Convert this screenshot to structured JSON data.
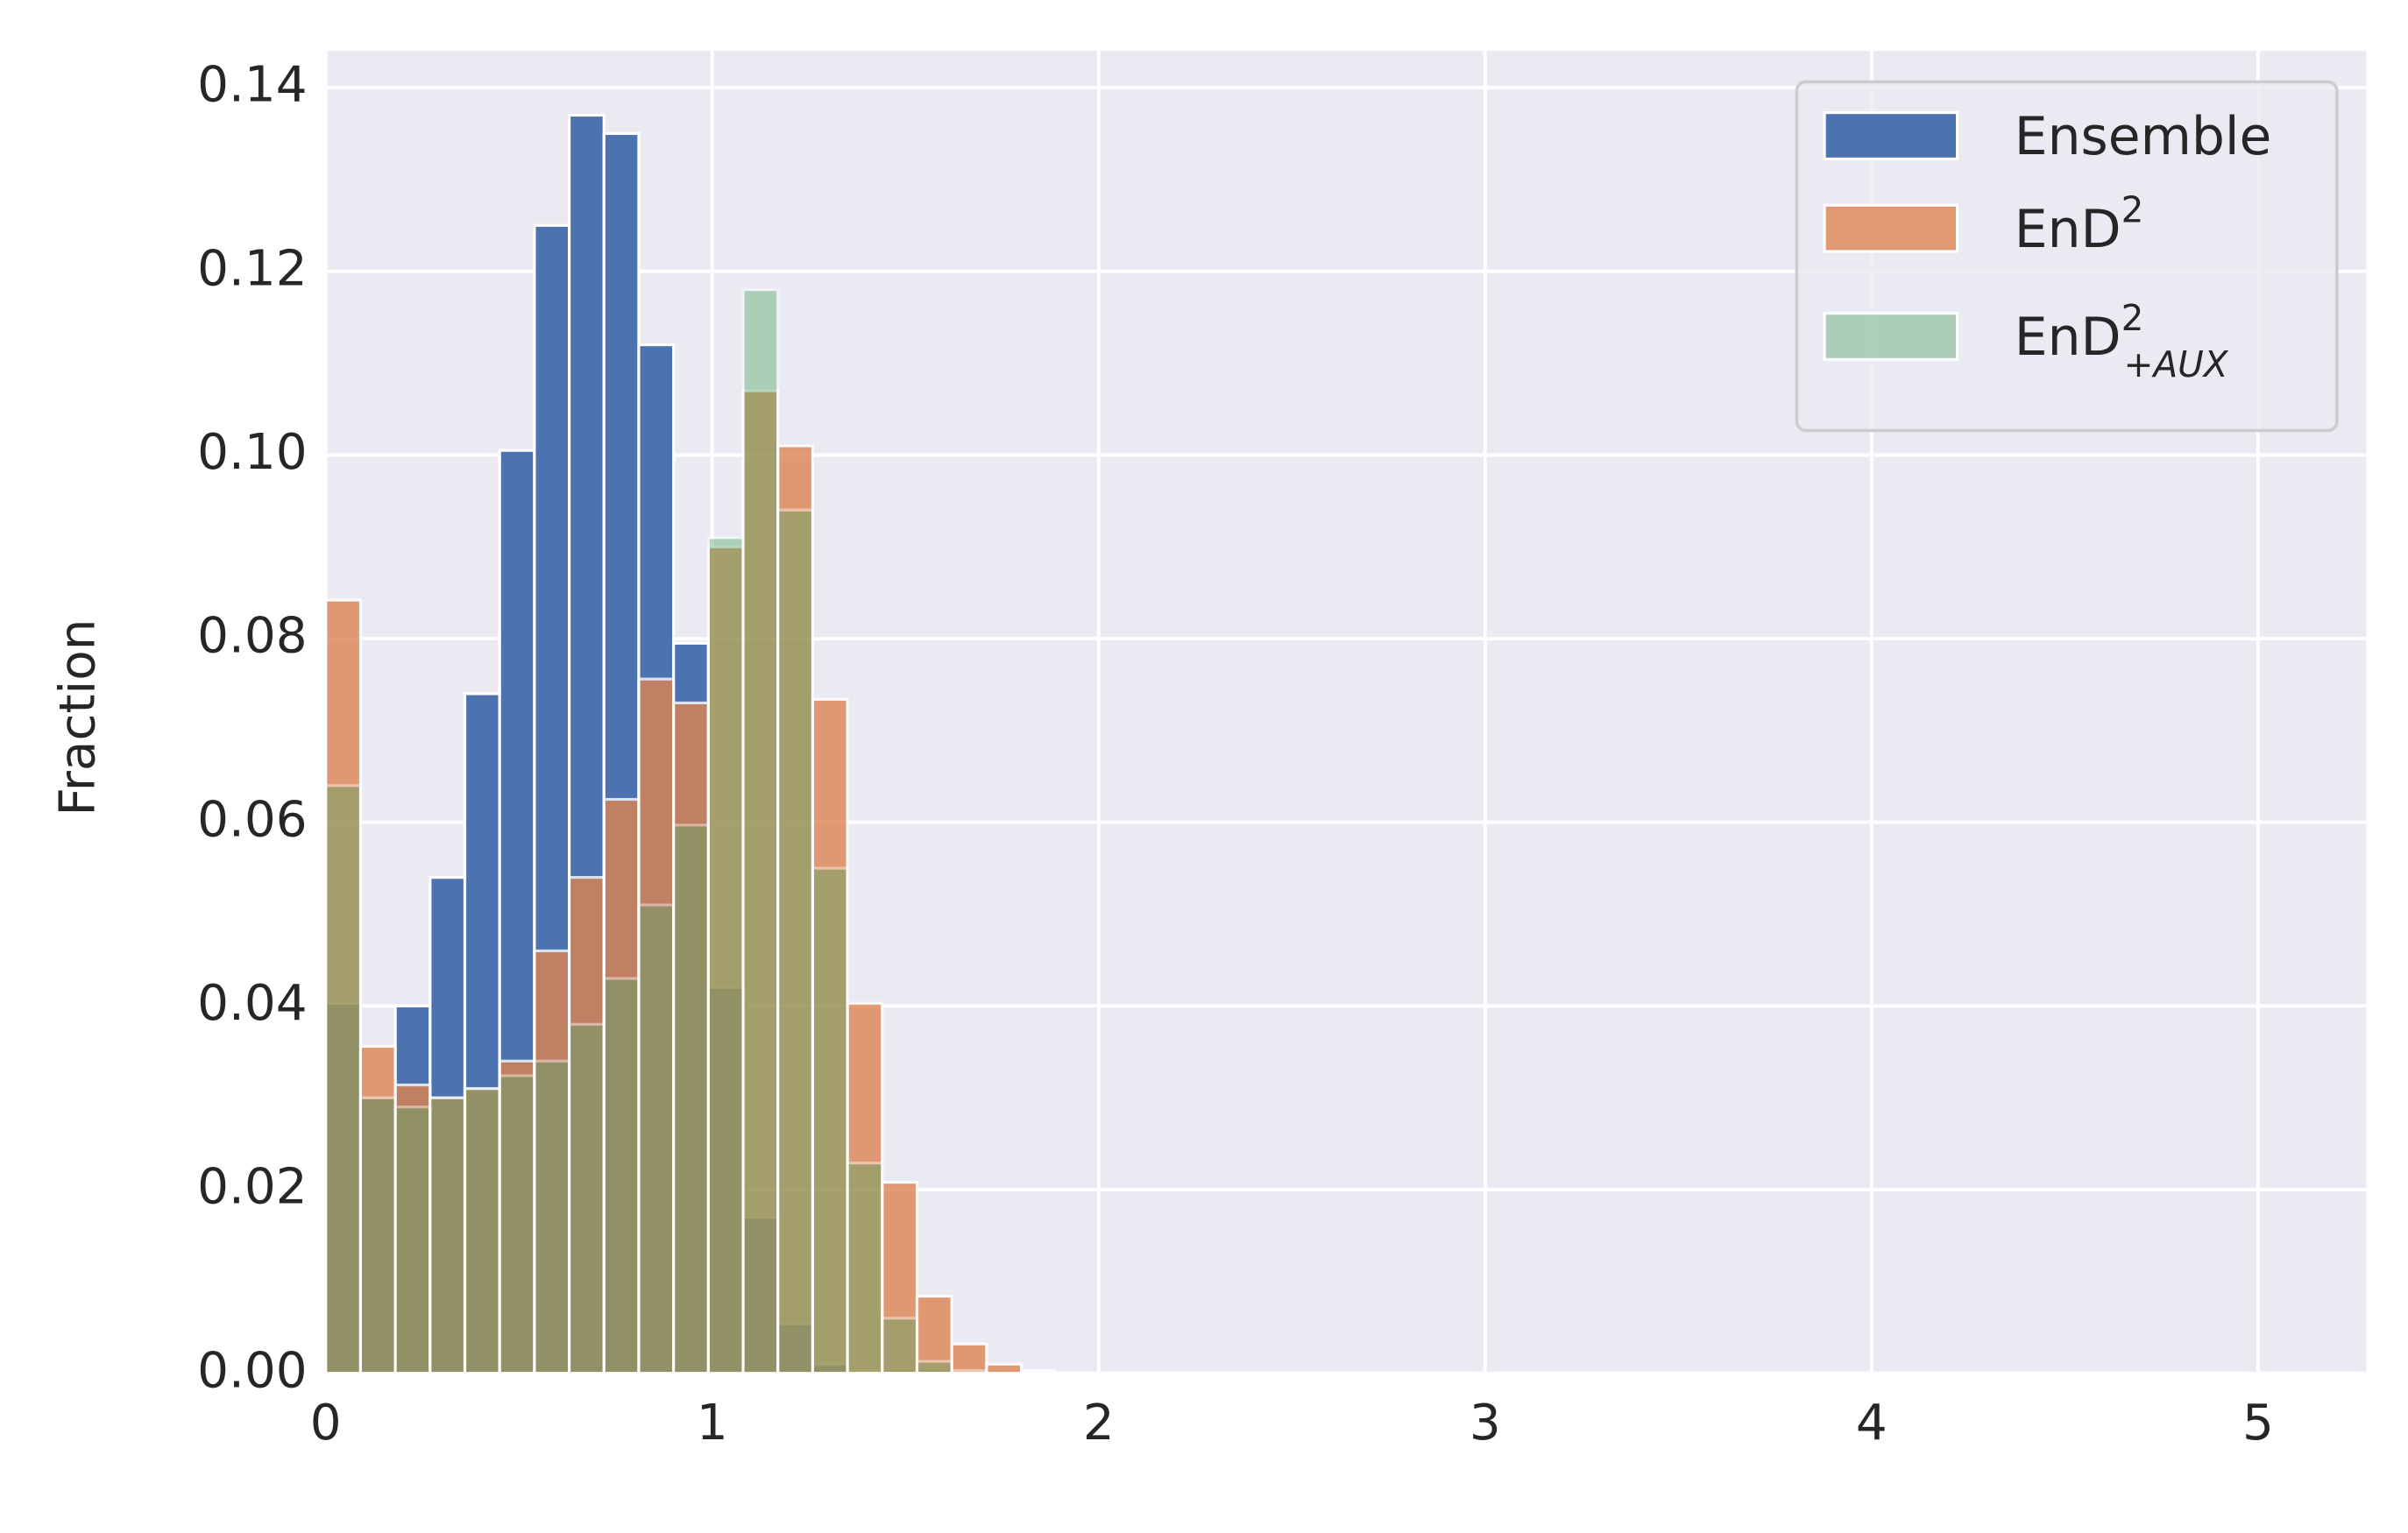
{
  "chart_data": {
    "type": "histogram",
    "ylabel": "Fraction",
    "bins": [
      0,
      0.09,
      0.18,
      0.27,
      0.36,
      0.45,
      0.54,
      0.63,
      0.72,
      0.81,
      0.9,
      0.99,
      1.08,
      1.17,
      1.26,
      1.35,
      1.44,
      1.53,
      1.62,
      1.71,
      1.8,
      1.89,
      1.98,
      2.07,
      2.16
    ],
    "series": [
      {
        "name": "Ensemble",
        "color": "#4c72b0",
        "alpha": 1,
        "values": [
          0.0403,
          0.03,
          0.04,
          0.054,
          0.074,
          0.1005,
          0.125,
          0.137,
          0.135,
          0.112,
          0.0795,
          0.042,
          0.017,
          0.0054,
          0.001,
          0.0003,
          0,
          0,
          0,
          0,
          0,
          0,
          0,
          0
        ]
      },
      {
        "name": "EnD",
        "name_sup": "2",
        "color": "#dd8452",
        "alpha": 0.8,
        "values": [
          0.0842,
          0.0356,
          0.0314,
          0.03,
          0.031,
          0.034,
          0.046,
          0.054,
          0.0625,
          0.0756,
          0.073,
          0.09,
          0.107,
          0.101,
          0.0734,
          0.0403,
          0.0208,
          0.0084,
          0.0032,
          0.001,
          0.0003,
          0,
          0,
          0
        ]
      },
      {
        "name": "EnD",
        "name_sup": "2",
        "name_sub": "+AUX",
        "color": "#55a868",
        "alpha": 0.42,
        "values": [
          0.064,
          0.03,
          0.029,
          0.03,
          0.031,
          0.0324,
          0.034,
          0.038,
          0.043,
          0.051,
          0.0597,
          0.091,
          0.118,
          0.094,
          0.055,
          0.0229,
          0.006,
          0.0013,
          0.0003,
          0,
          0,
          0,
          0,
          0
        ]
      }
    ],
    "xlim": [
      0,
      5.28
    ],
    "ylim": [
      0,
      0.144
    ],
    "xticks": [
      0,
      1,
      2,
      3,
      4,
      5
    ],
    "yticks": [
      {
        "value": 0,
        "label": "0.00"
      },
      {
        "value": 0.02,
        "label": "0.02"
      },
      {
        "value": 0.04,
        "label": "0.04"
      },
      {
        "value": 0.06,
        "label": "0.06"
      },
      {
        "value": 0.08,
        "label": "0.08"
      },
      {
        "value": 0.1,
        "label": "0.10"
      },
      {
        "value": 0.12,
        "label": "0.12"
      },
      {
        "value": 0.14,
        "label": "0.14"
      }
    ],
    "grid": true,
    "legend": "upper right"
  }
}
